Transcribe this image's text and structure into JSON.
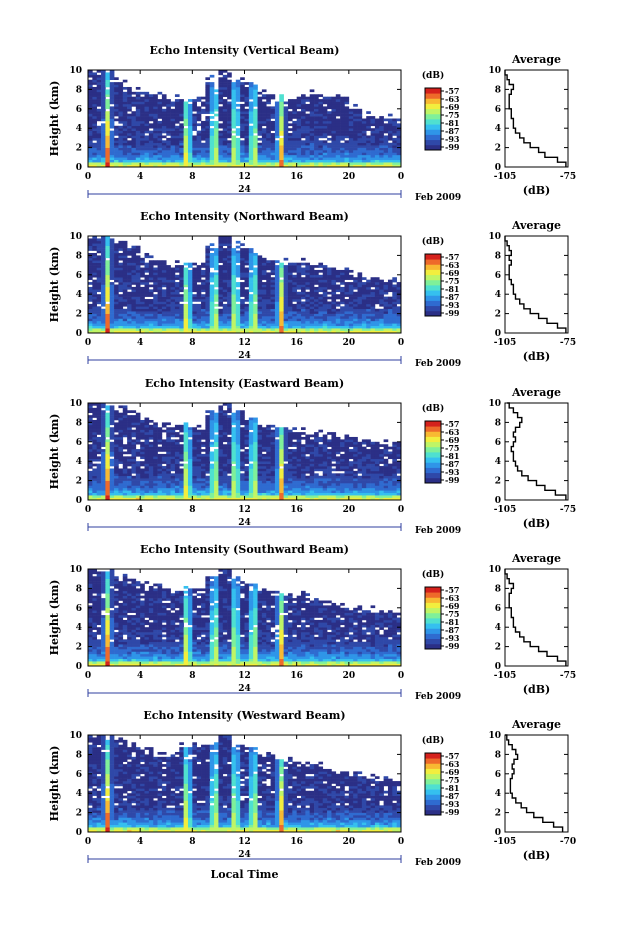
{
  "figure": {
    "x_axis_title": "Local Time",
    "x_ticks": [
      "0",
      "4",
      "8",
      "12",
      "16",
      "20",
      "0"
    ],
    "day_label": "24",
    "date_label": "Feb 2009",
    "y_axis_label": "Height (km)",
    "y_ticks": [
      "0",
      "2",
      "4",
      "6",
      "8",
      "10"
    ],
    "colorbar_unit": "(dB)",
    "colorbar_ticks": [
      "-57",
      "-63",
      "-69",
      "-75",
      "-81",
      "-87",
      "-93",
      "-99"
    ],
    "average_title": "Average",
    "average_xlabel": "(dB)",
    "colors": {
      "colormap": [
        "#2b2f86",
        "#2f48a8",
        "#2f6bd0",
        "#2f95e8",
        "#35c0ef",
        "#4fe0d0",
        "#7ff09a",
        "#bff566",
        "#f2ee3e",
        "#f8b932",
        "#ee6a2a",
        "#d5211c"
      ],
      "no_echo": "#ffffff",
      "axis": "#000000"
    }
  },
  "chart_data": [
    {
      "type": "heatmap",
      "title": "Echo Intensity (Vertical Beam)",
      "xlabel": "Local Time",
      "ylabel": "Height (km)",
      "xlim": [
        0,
        24
      ],
      "ylim": [
        0,
        10
      ],
      "color_scale": {
        "unit": "dB",
        "min": -99,
        "max": -57
      },
      "rain_events_hours": [
        1.5,
        7.6,
        9.7,
        11.3,
        12.7,
        14.8
      ],
      "echo_top_km": [
        10,
        10,
        9,
        8,
        7.6,
        7.5,
        7.2,
        7,
        7,
        9,
        10,
        9,
        8.5,
        7.6,
        7.2,
        7,
        7.3,
        7.6,
        7.5,
        7.2,
        6.2,
        5.5,
        5.2,
        5
      ],
      "average_profile": {
        "xlim": [
          -105,
          -75
        ],
        "xticks": [
          "-105",
          "-75"
        ],
        "height_km": [
          0,
          0.5,
          1,
          1.5,
          2,
          2.5,
          3,
          3.5,
          4,
          4.5,
          5,
          5.5,
          6,
          6.5,
          7,
          7.5,
          8,
          8.5,
          9,
          9.5,
          10
        ],
        "dB": [
          -76,
          -80,
          -86,
          -89,
          -93,
          -96,
          -98,
          -100,
          -101,
          -101,
          -102,
          -102,
          -103,
          -103,
          -103,
          -102,
          -101,
          -103,
          -104,
          -105,
          -105
        ]
      }
    },
    {
      "type": "heatmap",
      "title": "Echo Intensity (Northward Beam)",
      "xlabel": "Local Time",
      "ylabel": "Height (km)",
      "xlim": [
        0,
        24
      ],
      "ylim": [
        0,
        10
      ],
      "color_scale": {
        "unit": "dB",
        "min": -99,
        "max": -57
      },
      "rain_events_hours": [
        1.5,
        7.6,
        9.7,
        11.3,
        12.7,
        14.8
      ],
      "echo_top_km": [
        10,
        10,
        9.5,
        9,
        8,
        7.5,
        7.2,
        7,
        7,
        9,
        10,
        9,
        8.5,
        7.6,
        7.2,
        7.4,
        7.3,
        7,
        6.8,
        6.5,
        6.2,
        5.8,
        5.6,
        5.5
      ],
      "average_profile": {
        "xlim": [
          -105,
          -75
        ],
        "xticks": [
          "-105",
          "-75"
        ],
        "height_km": [
          0,
          0.5,
          1,
          1.5,
          2,
          2.5,
          3,
          3.5,
          4,
          4.5,
          5,
          5.5,
          6,
          6.5,
          7,
          7.5,
          8,
          8.5,
          9,
          9.5,
          10
        ],
        "dB": [
          -76,
          -80,
          -85,
          -89,
          -93,
          -96,
          -98,
          -100,
          -101,
          -101,
          -102,
          -103,
          -103,
          -103,
          -102,
          -103,
          -102,
          -103,
          -104,
          -105,
          -105
        ]
      }
    },
    {
      "type": "heatmap",
      "title": "Echo Intensity (Eastward Beam)",
      "xlabel": "Local Time",
      "ylabel": "Height (km)",
      "xlim": [
        0,
        24
      ],
      "ylim": [
        0,
        10
      ],
      "color_scale": {
        "unit": "dB",
        "min": -99,
        "max": -57
      },
      "rain_events_hours": [
        1.5,
        7.6,
        9.7,
        11.3,
        12.7,
        14.8
      ],
      "echo_top_km": [
        10,
        10,
        9.5,
        9,
        8.5,
        8,
        7.8,
        7.8,
        7.5,
        9,
        10,
        9,
        8.5,
        7.8,
        7.5,
        7.4,
        7.2,
        7,
        6.8,
        6.5,
        6.4,
        6.2,
        6,
        5.8
      ],
      "average_profile": {
        "xlim": [
          -105,
          -75
        ],
        "xticks": [
          "-105",
          "-75"
        ],
        "height_km": [
          0,
          0.5,
          1,
          1.5,
          2,
          2.5,
          3,
          3.5,
          4,
          4.5,
          5,
          5.5,
          6,
          6.5,
          7,
          7.5,
          8,
          8.5,
          9,
          9.5,
          10
        ],
        "dB": [
          -76,
          -81,
          -86,
          -90,
          -94,
          -97,
          -99,
          -100,
          -101,
          -101,
          -102,
          -101,
          -100,
          -101,
          -100,
          -98,
          -97,
          -99,
          -101,
          -103,
          -104
        ]
      }
    },
    {
      "type": "heatmap",
      "title": "Echo Intensity (Southward Beam)",
      "xlabel": "Local Time",
      "ylabel": "Height (km)",
      "xlim": [
        0,
        24
      ],
      "ylim": [
        0,
        10
      ],
      "color_scale": {
        "unit": "dB",
        "min": -99,
        "max": -57
      },
      "rain_events_hours": [
        1.5,
        7.6,
        9.7,
        11.3,
        12.7,
        14.8
      ],
      "echo_top_km": [
        10,
        10,
        9.5,
        9,
        8.5,
        8.2,
        8,
        8,
        8,
        9,
        10,
        9,
        8.5,
        7.8,
        7.6,
        7.4,
        7.3,
        7,
        6.6,
        6.2,
        6,
        5.8,
        5.7,
        5.5
      ],
      "average_profile": {
        "xlim": [
          -105,
          -75
        ],
        "xticks": [
          "-105",
          "-75"
        ],
        "height_km": [
          0,
          0.5,
          1,
          1.5,
          2,
          2.5,
          3,
          3.5,
          4,
          4.5,
          5,
          5.5,
          6,
          6.5,
          7,
          7.5,
          8,
          8.5,
          9,
          9.5,
          10
        ],
        "dB": [
          -76,
          -80,
          -85,
          -89,
          -93,
          -96,
          -98,
          -100,
          -101,
          -101,
          -102,
          -102,
          -103,
          -103,
          -103,
          -102,
          -101,
          -103,
          -104,
          -105,
          -105
        ]
      }
    },
    {
      "type": "heatmap",
      "title": "Echo Intensity (Westward Beam)",
      "xlabel": "Local Time",
      "ylabel": "Height (km)",
      "xlim": [
        0,
        24
      ],
      "ylim": [
        0,
        10
      ],
      "color_scale": {
        "unit": "dB",
        "min": -99,
        "max": -57
      },
      "rain_events_hours": [
        1.5,
        7.6,
        9.7,
        11.3,
        12.7,
        14.8
      ],
      "echo_top_km": [
        10,
        10,
        9.5,
        9,
        8.5,
        8,
        8,
        9,
        9,
        9,
        10,
        9,
        8.5,
        8,
        7.8,
        7.5,
        7,
        7,
        6.5,
        6.2,
        6,
        5.8,
        5.5,
        5.5
      ],
      "average_profile": {
        "xlim": [
          -105,
          -70
        ],
        "xticks": [
          "-105",
          "-70"
        ],
        "height_km": [
          0,
          0.5,
          1,
          1.5,
          2,
          2.5,
          3,
          3.5,
          4,
          4.5,
          5,
          5.5,
          6,
          6.5,
          7,
          7.5,
          8,
          8.5,
          9,
          9.5,
          10
        ],
        "dB": [
          -73,
          -78,
          -84,
          -89,
          -93,
          -96,
          -99,
          -101,
          -102,
          -102,
          -102,
          -101,
          -100,
          -101,
          -100,
          -98,
          -99,
          -101,
          -103,
          -104,
          -105
        ]
      }
    }
  ]
}
